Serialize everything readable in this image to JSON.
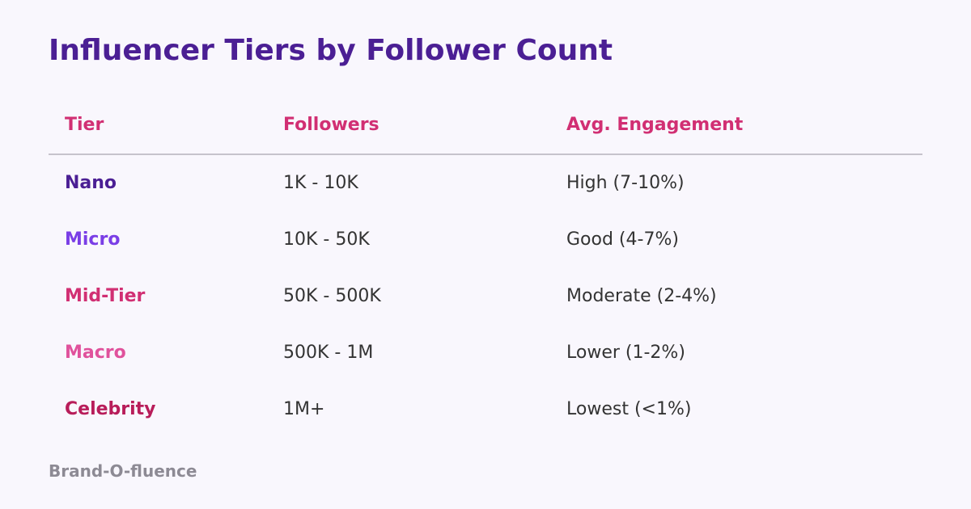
{
  "title": "Influencer Tiers by Follower Count",
  "table": {
    "headers": [
      "Tier",
      "Followers",
      "Avg. Engagement"
    ],
    "header_color": "#d12f73",
    "rows": [
      {
        "tier": "Nano",
        "followers": "1K - 10K",
        "engagement": "High (7-10%)",
        "color": "#4b1f94"
      },
      {
        "tier": "Micro",
        "followers": "10K - 50K",
        "engagement": "Good (4-7%)",
        "color": "#7a3ee6"
      },
      {
        "tier": "Mid-Tier",
        "followers": "50K - 500K",
        "engagement": "Moderate (2-4%)",
        "color": "#d12f73"
      },
      {
        "tier": "Macro",
        "followers": "500K - 1M",
        "engagement": "Lower (1-2%)",
        "color": "#e0529c"
      },
      {
        "tier": "Celebrity",
        "followers": "1M+",
        "engagement": "Lowest (<1%)",
        "color": "#b81d5a"
      }
    ]
  },
  "footer": "Brand-O-fluence"
}
